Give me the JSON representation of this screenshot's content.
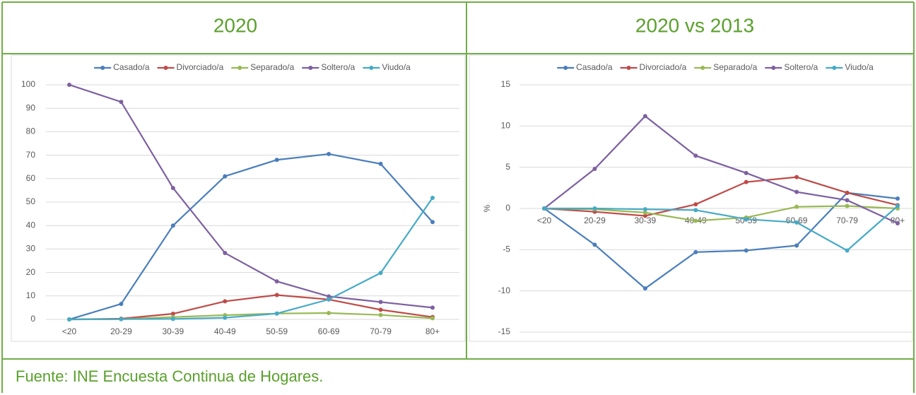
{
  "chart_data": [
    {
      "type": "line",
      "title": "2020",
      "categories": [
        "<20",
        "20-29",
        "30-39",
        "40-49",
        "50-59",
        "60-69",
        "70-79",
        "80+"
      ],
      "series": [
        {
          "name": "Casado/a",
          "color": "#4a7ebb",
          "values": [
            0,
            6.6,
            40,
            61,
            68,
            70.5,
            66.3,
            41.5
          ]
        },
        {
          "name": "Divorciado/a",
          "color": "#be4b48",
          "values": [
            0,
            0.3,
            2.4,
            7.7,
            10.4,
            8.5,
            4.1,
            1.0
          ]
        },
        {
          "name": "Separado/a",
          "color": "#98b954",
          "values": [
            0,
            0.1,
            1.0,
            1.8,
            2.5,
            2.7,
            1.9,
            0.5
          ]
        },
        {
          "name": "Soltero/a",
          "color": "#7d60a0",
          "values": [
            100,
            92.7,
            56,
            28.3,
            16.2,
            9.8,
            7.4,
            5.0
          ]
        },
        {
          "name": "Viudo/a",
          "color": "#46aac5",
          "values": [
            0,
            0.1,
            0.2,
            0.7,
            2.5,
            8.5,
            19.8,
            51.8
          ]
        }
      ],
      "ylim": [
        0,
        100
      ],
      "yticks": [
        0,
        10,
        20,
        30,
        40,
        50,
        60,
        70,
        80,
        90,
        100
      ],
      "grid": true,
      "legend": "top"
    },
    {
      "type": "line",
      "title": "2020 vs 2013",
      "ylabel": "%",
      "categories": [
        "<20",
        "20-29",
        "30-39",
        "40-49",
        "50-59",
        "60-69",
        "70-79",
        "80+"
      ],
      "series": [
        {
          "name": "Casado/a",
          "color": "#4a7ebb",
          "values": [
            0,
            -4.4,
            -9.7,
            -5.3,
            -5.1,
            -4.5,
            1.9,
            1.2
          ]
        },
        {
          "name": "Divorciado/a",
          "color": "#be4b48",
          "values": [
            0,
            -0.4,
            -0.9,
            0.5,
            3.2,
            3.8,
            1.9,
            0.4
          ]
        },
        {
          "name": "Separado/a",
          "color": "#98b954",
          "values": [
            0,
            -0.1,
            -0.5,
            -1.5,
            -1.1,
            0.2,
            0.3,
            0.0
          ]
        },
        {
          "name": "Soltero/a",
          "color": "#7d60a0",
          "values": [
            0,
            4.8,
            11.2,
            6.4,
            4.3,
            2.0,
            1.0,
            -1.8
          ]
        },
        {
          "name": "Viudo/a",
          "color": "#46aac5",
          "values": [
            0,
            0,
            -0.1,
            -0.2,
            -1.3,
            -1.7,
            -5.1,
            0.3
          ]
        }
      ],
      "ylim": [
        -15,
        15
      ],
      "yticks": [
        -15,
        -10,
        -5,
        0,
        5,
        10,
        15
      ],
      "grid": true,
      "legend": "top"
    }
  ],
  "footer": "Fuente: INE Encuesta Continua de Hogares."
}
